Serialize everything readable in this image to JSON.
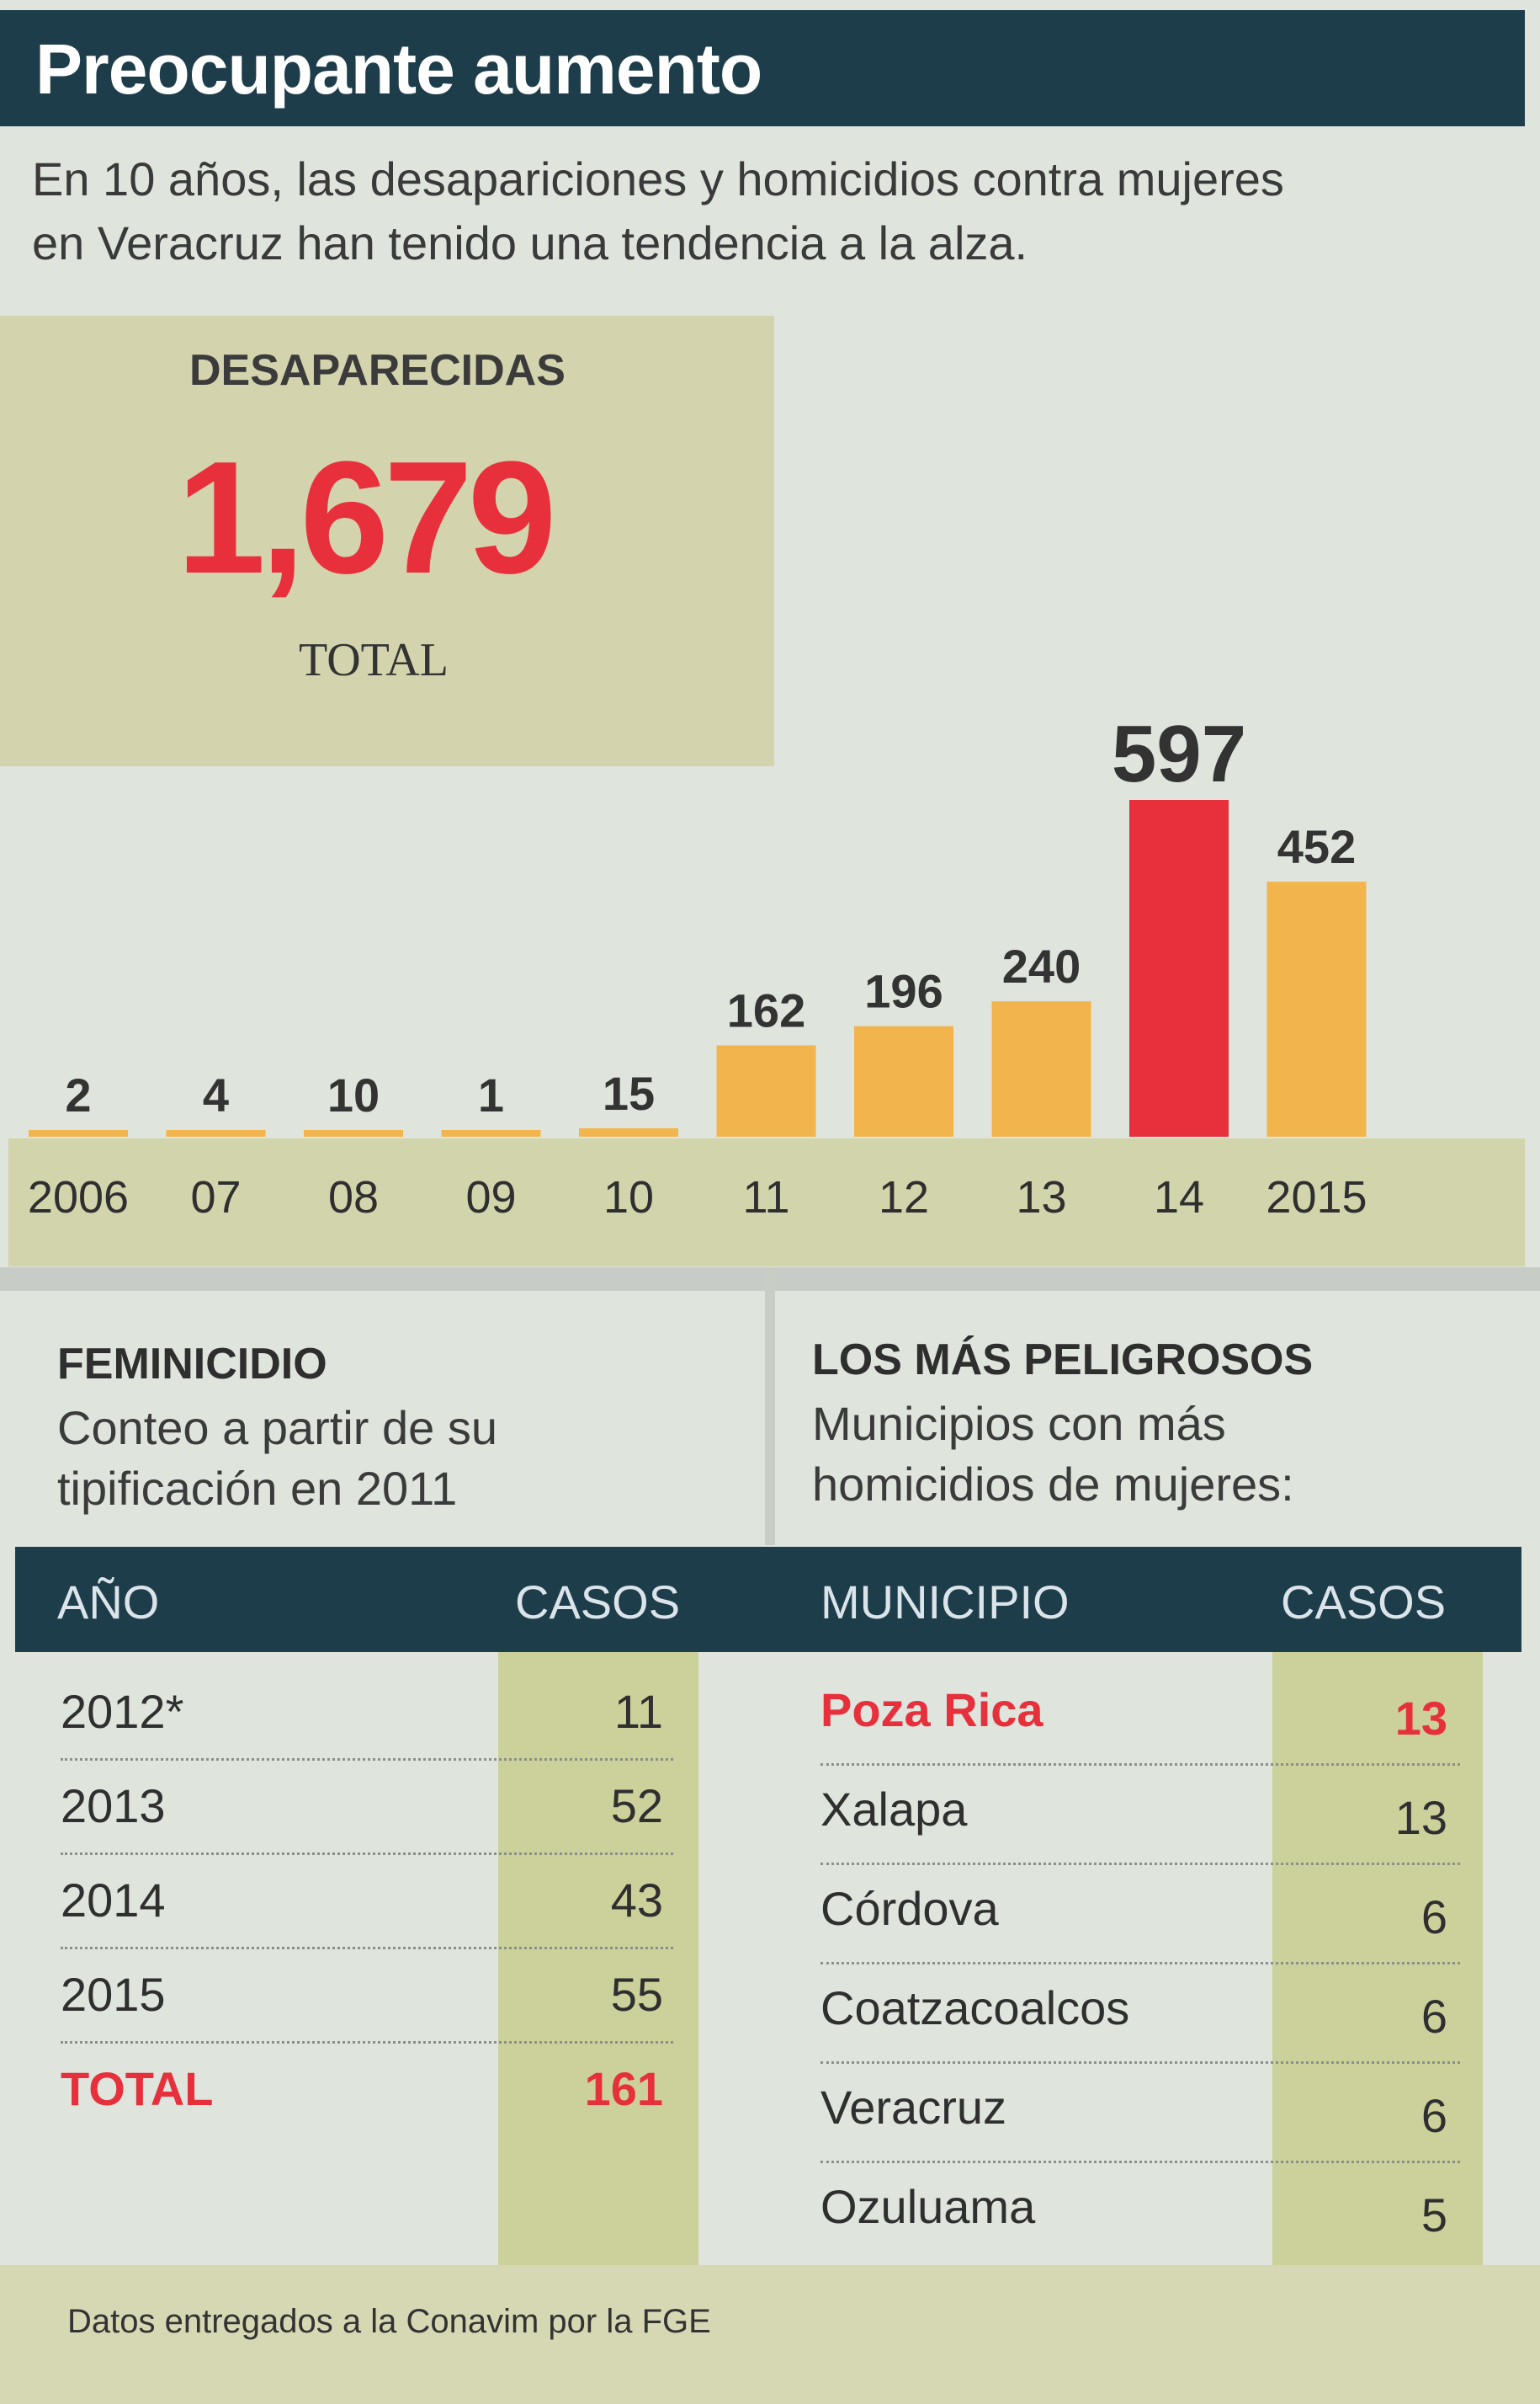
{
  "header": {
    "title": "Preocupante aumento",
    "intro_line1": "En 10 años, las desapariciones y homicidios contra mujeres",
    "intro_line2": "en Veracruz han tenido una tendencia a la alza."
  },
  "summary": {
    "label": "DESAPARECIDAS",
    "value": "1,679",
    "unit": "TOTAL"
  },
  "chart_data": {
    "type": "bar",
    "title": "DESAPARECIDAS",
    "categories": [
      "2006",
      "07",
      "08",
      "09",
      "10",
      "11",
      "12",
      "13",
      "14",
      "2015"
    ],
    "values": [
      2,
      4,
      10,
      1,
      15,
      162,
      196,
      240,
      597,
      452
    ],
    "highlight_index": 8,
    "colors": {
      "default": "#f2b54d",
      "highlight": "#e8303d"
    },
    "xlabel": "",
    "ylabel": "",
    "ylim": [
      0,
      597
    ],
    "grid": false,
    "legend": "none"
  },
  "feminicidio": {
    "title": "FEMINICIDIO",
    "subtitle_line1": "Conteo a partir de su",
    "subtitle_line2": "tipificación en 2011",
    "headers": {
      "year": "AÑO",
      "cases": "CASOS"
    },
    "rows": [
      {
        "year": "2012*",
        "cases": "11"
      },
      {
        "year": "2013",
        "cases": "52"
      },
      {
        "year": "2014",
        "cases": "43"
      },
      {
        "year": "2015",
        "cases": "55"
      }
    ],
    "total": {
      "label": "TOTAL",
      "cases": "161"
    }
  },
  "peligrosos": {
    "title": "LOS MÁS PELIGROSOS",
    "subtitle_line1": "Municipios con más",
    "subtitle_line2": "homicidios de mujeres:",
    "headers": {
      "municipio": "MUNICIPIO",
      "cases": "CASOS"
    },
    "rows": [
      {
        "municipio": "Poza Rica",
        "cases": "13"
      },
      {
        "municipio": "Xalapa",
        "cases": "13"
      },
      {
        "municipio": "Córdova",
        "cases": "6"
      },
      {
        "municipio": "Coatzacoalcos",
        "cases": "6"
      },
      {
        "municipio": "Veracruz",
        "cases": "6"
      },
      {
        "municipio": "Ozuluama",
        "cases": "5"
      }
    ]
  },
  "footer": {
    "source": "Datos entregados a la Conavim por la FGE"
  }
}
